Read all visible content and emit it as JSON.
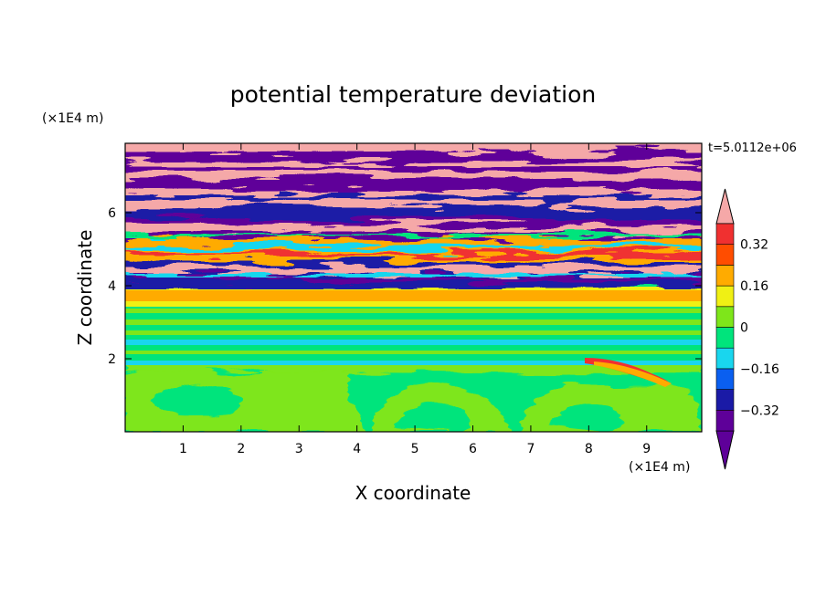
{
  "chart_data": {
    "type": "heatmap",
    "title": "potential temperature deviation",
    "xlabel": "X coordinate",
    "ylabel": "Z coordinate",
    "x_unit": "(×1E4 m)",
    "z_unit": "(×1E4 m)",
    "time_label": "t=5.0112e+06",
    "xlim": [
      0,
      9.95
    ],
    "ylim": [
      0,
      7.9
    ],
    "x_ticks": [
      1,
      2,
      3,
      4,
      5,
      6,
      7,
      8,
      9
    ],
    "x_tick_labels": [
      "1",
      "2",
      "3",
      "4",
      "5",
      "6",
      "7",
      "8",
      "9"
    ],
    "y_ticks": [
      2,
      4,
      6
    ],
    "y_tick_labels": [
      "2",
      "4",
      "6"
    ],
    "colorbar": {
      "levels": [
        -0.4,
        -0.32,
        -0.24,
        -0.16,
        -0.08,
        0,
        0.08,
        0.16,
        0.24,
        0.32,
        0.4
      ],
      "tick_values": [
        0.32,
        0.16,
        0,
        -0.16,
        -0.32
      ],
      "tick_labels": [
        "0.32",
        "0.16",
        "0",
        "−0.16",
        "−0.32"
      ],
      "colors": [
        "#5e0099",
        "#1a1aa6",
        "#0a5ff0",
        "#19d6ee",
        "#00e47c",
        "#7ee61a",
        "#f0f014",
        "#ffab00",
        "#ff4d00",
        "#f03030",
        "#f5a8a8"
      ],
      "extend": "both"
    },
    "layers": [
      {
        "z_range": [
          0,
          1.8
        ],
        "pattern": "green plumes (-0.08 to 0.08) with rolled eddies"
      },
      {
        "z_range": [
          1.8,
          3.5
        ],
        "pattern": "horizontal green/cyan bands near 0"
      },
      {
        "z_range": [
          3.5,
          4.0
        ],
        "pattern": "orange/yellow stable band ~0.16-0.24"
      },
      {
        "z_range": [
          4.0,
          5.5
        ],
        "pattern": "mixed turbulence, full range"
      },
      {
        "z_range": [
          5.5,
          7.9
        ],
        "pattern": "alternating purple (<-0.4) and pink (>0.4) streaks"
      }
    ]
  }
}
